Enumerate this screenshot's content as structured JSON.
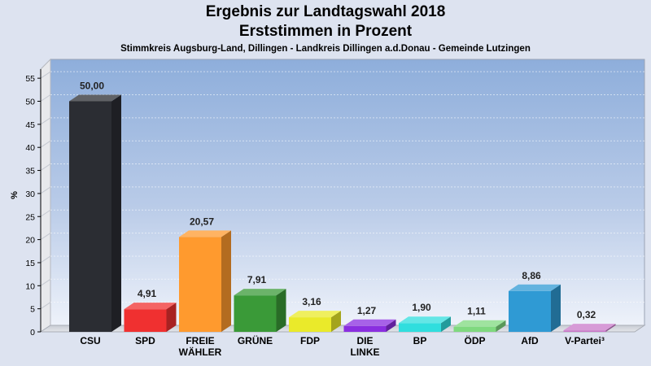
{
  "header": {
    "title_line1": "Ergebnis zur Landtagswahl 2018",
    "title_line2": "Erststimmen in Prozent",
    "subtitle": "Stimmkreis Augsburg-Land, Dillingen - Landkreis Dillingen a.d.Donau - Gemeinde Lutzingen"
  },
  "chart_data": {
    "type": "bar",
    "ylabel": "%",
    "ylim": [
      0,
      57.5
    ],
    "yticks": [
      0,
      5,
      10,
      15,
      20,
      25,
      30,
      35,
      40,
      45,
      50,
      55
    ],
    "grid": true,
    "categories": [
      [
        "CSU"
      ],
      [
        "SPD"
      ],
      [
        "FREIE",
        "WÄHLER"
      ],
      [
        "GRÜNE"
      ],
      [
        "FDP"
      ],
      [
        "DIE",
        "LINKE"
      ],
      [
        "BP"
      ],
      [
        "ÖDP"
      ],
      [
        "AfD"
      ],
      [
        "V-Partei³"
      ]
    ],
    "values": [
      50.0,
      4.91,
      20.57,
      7.91,
      3.16,
      1.27,
      1.9,
      1.11,
      8.86,
      0.32
    ],
    "value_labels": [
      "50,00",
      "4,91",
      "20,57",
      "7,91",
      "3,16",
      "1,27",
      "1,90",
      "1,11",
      "8,86",
      "0,32"
    ],
    "colors": [
      "#2b2d33",
      "#f03030",
      "#ff9a2e",
      "#3a9a38",
      "#eaea2a",
      "#8a2ee0",
      "#30dede",
      "#7fd97f",
      "#2f9ad4",
      "#c97ac9"
    ]
  }
}
